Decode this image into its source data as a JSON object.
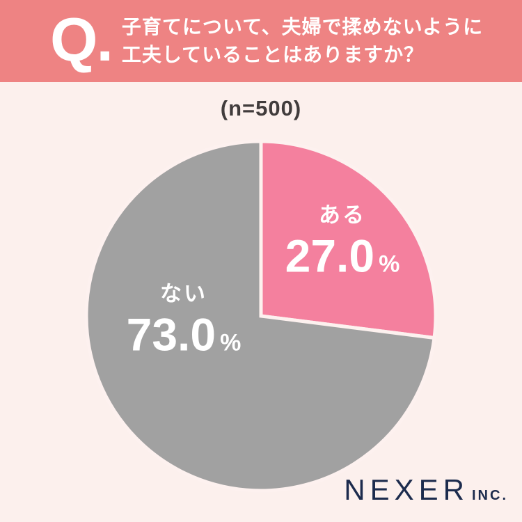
{
  "page": {
    "bg_color": "#fcf0ed"
  },
  "header": {
    "bg_color": "#ee8383",
    "q_mark": "Q.",
    "question_lines": [
      "子育てについて、夫婦で揉めないように",
      "工夫していることはありますか？"
    ]
  },
  "chart_data": {
    "type": "pie",
    "title": "子育てについて、夫婦で揉めないように工夫していることはありますか？",
    "sample_label": "(n=500)",
    "categories": [
      "ある",
      "ない"
    ],
    "values": [
      27,
      73
    ],
    "unit": "%",
    "colors": [
      "#f4809e",
      "#a1a1a1"
    ],
    "slice_border_color": "#fdf1ef",
    "start_angle": "top",
    "direction": "clockwise",
    "legend_position": "none",
    "labels": [
      {
        "category": "ある",
        "value_text": "27.0",
        "unit": "%"
      },
      {
        "category": "ない",
        "value_text": "73.0",
        "unit": "%"
      }
    ]
  },
  "footer": {
    "brand": "NEXER",
    "brand_suffix": "INC.",
    "color": "#1c2b4d"
  }
}
